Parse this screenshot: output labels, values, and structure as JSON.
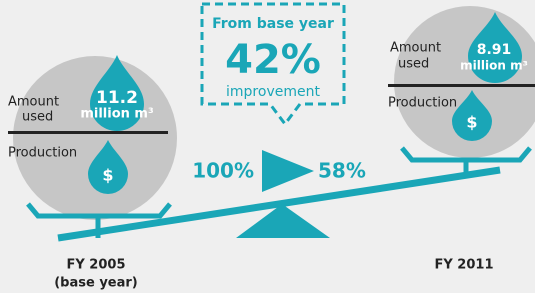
{
  "center": {
    "box": {
      "line1": "From base year",
      "value": "42%",
      "line2": "improvement"
    },
    "from": "100%",
    "to": "58%"
  },
  "left": {
    "amount_line1": "Amount",
    "amount_line2": "used",
    "value": "11.2",
    "unit": "million m³",
    "production": "Production",
    "icon": "$",
    "label_line1": "FY 2005",
    "label_line2": "(base year)"
  },
  "right": {
    "amount_line1": "Amount",
    "amount_line2": "used",
    "value": "8.91",
    "unit": "million m³",
    "production": "Production",
    "icon": "$",
    "label_line1": "FY 2011"
  }
}
